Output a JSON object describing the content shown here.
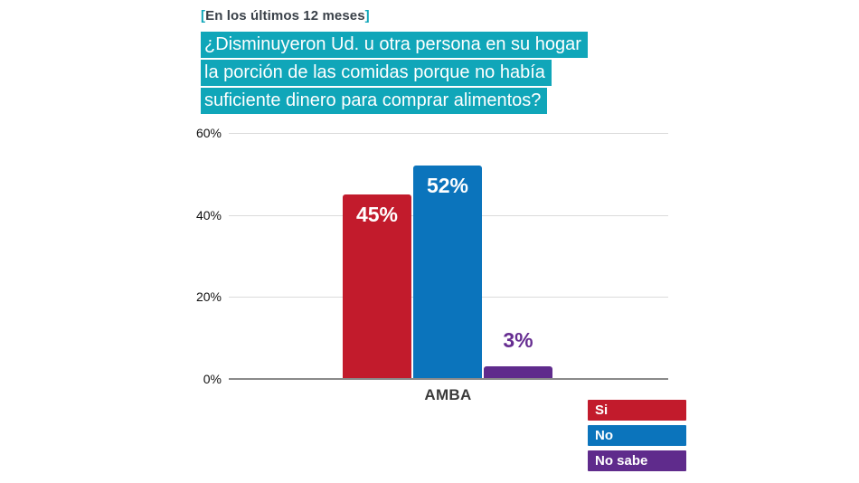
{
  "header": {
    "bracket_open": "[",
    "label": "En los últimos 12 meses",
    "bracket_close": "]"
  },
  "question": {
    "lines": [
      "¿Disminuyeron Ud. u otra persona en su hogar",
      "la porción de las comidas porque no había",
      "suficiente dinero para comprar alimentos?"
    ],
    "highlight_color": "#10A6B9"
  },
  "chart_data": {
    "type": "bar",
    "categories": [
      "AMBA"
    ],
    "series": [
      {
        "name": "Si",
        "values": [
          45
        ],
        "label": "45%",
        "color": "#C21B2C",
        "label_position": "inside"
      },
      {
        "name": "No",
        "values": [
          52
        ],
        "label": "52%",
        "color": "#0B74BC",
        "label_position": "inside"
      },
      {
        "name": "No sabe",
        "values": [
          3
        ],
        "label": "3%",
        "color": "#5F2B8C",
        "label_position": "above"
      }
    ],
    "ylim": [
      0,
      60
    ],
    "yticks": [
      "60%",
      "40%",
      "20%",
      "0%"
    ],
    "xlabel": "",
    "ylabel": "",
    "grid": true,
    "legend_position": "bottom-right"
  },
  "legend": {
    "items": [
      {
        "label": "Si",
        "color": "#C21B2C"
      },
      {
        "label": "No",
        "color": "#0B74BC"
      },
      {
        "label": "No sabe",
        "color": "#5F2B8C"
      }
    ]
  }
}
